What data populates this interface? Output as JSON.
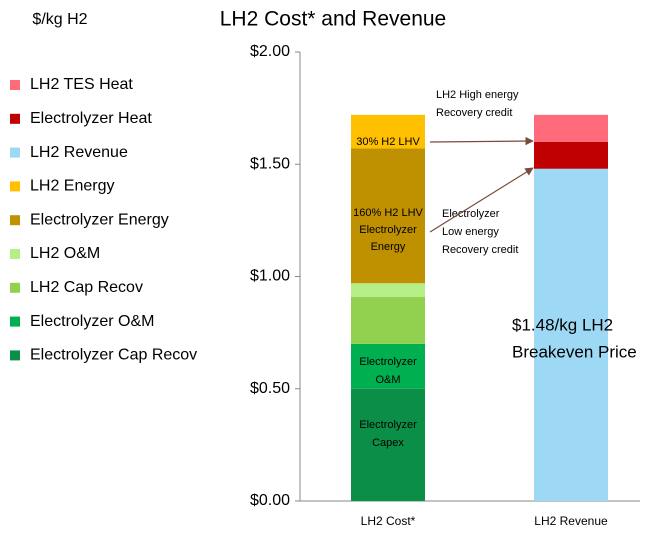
{
  "chart_data": {
    "type": "stacked_bar",
    "title": "LH2 Cost* and Revenue",
    "y_label": "$/kg H2",
    "categories": [
      "LH2 Cost*",
      "LH2 Revenue"
    ],
    "series": [
      {
        "name": "Electrolyzer Cap Recov",
        "color": "#0b8f47",
        "values": [
          0.5,
          null
        ]
      },
      {
        "name": "Electrolyzer O&M",
        "color": "#00b050",
        "values": [
          0.2,
          null
        ]
      },
      {
        "name": "LH2 Cap Recov",
        "color": "#92d050",
        "values": [
          0.21,
          null
        ]
      },
      {
        "name": "LH2 O&M",
        "color": "#b6ef86",
        "values": [
          0.06,
          null
        ]
      },
      {
        "name": "Electrolyzer Energy",
        "color": "#bf9000",
        "values": [
          0.6,
          null
        ]
      },
      {
        "name": "LH2 Energy",
        "color": "#ffc000",
        "values": [
          0.15,
          null
        ]
      },
      {
        "name": "LH2 Revenue",
        "color": "#9dd8f5",
        "values": [
          null,
          1.48
        ]
      },
      {
        "name": "Electrolyzer Heat",
        "color": "#c00000",
        "values": [
          null,
          0.12
        ]
      },
      {
        "name": "LH2 TES Heat",
        "color": "#ff6b7a",
        "values": [
          null,
          0.12
        ]
      }
    ],
    "ylim": [
      0,
      2
    ],
    "yticks": [
      {
        "value": 0,
        "label": "$0.00"
      },
      {
        "value": 0.5,
        "label": "$0.50"
      },
      {
        "value": 1,
        "label": "$1.00"
      },
      {
        "value": 1.5,
        "label": "$1.50"
      },
      {
        "value": 2,
        "label": "$2.00"
      }
    ],
    "grid": false,
    "legend": "left",
    "annotations": [
      {
        "lines": [
          "30% H2 LHV"
        ]
      },
      {
        "lines": [
          "160% H2 LHV",
          "Electrolyzer",
          "Energy"
        ]
      },
      {
        "lines": [
          "Electrolyzer",
          "O&M"
        ]
      },
      {
        "lines": [
          "Electrolyzer",
          "Capex"
        ]
      },
      {
        "lines": [
          "LH2 High energy",
          "Recovery credit"
        ]
      },
      {
        "lines": [
          "Electrolyzer",
          "Low energy",
          "Recovery credit"
        ]
      },
      {
        "lines": [
          "$1.48/kg LH2",
          "Breakeven Price"
        ]
      }
    ]
  }
}
